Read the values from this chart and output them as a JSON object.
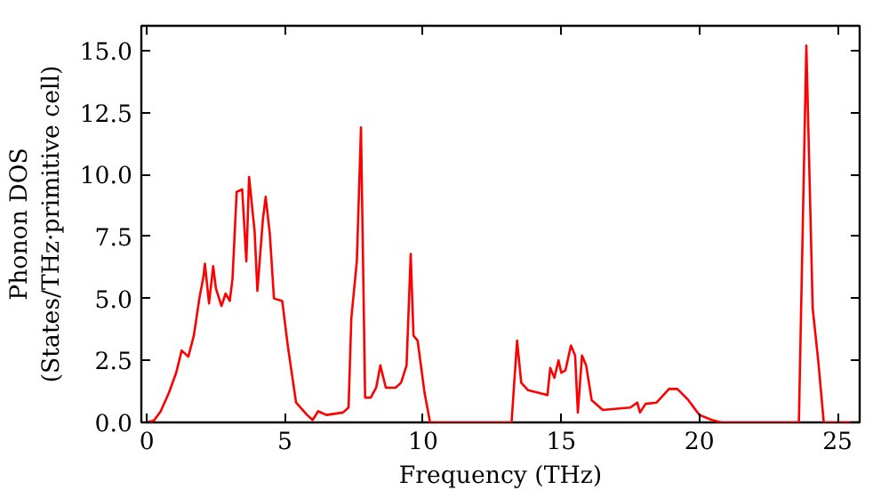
{
  "chart_data": {
    "type": "line",
    "xlabel": "Frequency (THz)",
    "ylabel": "Phonon DOS\n(States/THz·primitive cell)",
    "x": [
      0,
      0.26,
      0.5,
      0.8,
      1.06,
      1.26,
      1.5,
      1.7,
      1.9,
      2.05,
      2.1,
      2.25,
      2.4,
      2.5,
      2.7,
      2.85,
      3.0,
      3.1,
      3.25,
      3.45,
      3.6,
      3.7,
      3.9,
      4.0,
      4.2,
      4.3,
      4.45,
      4.6,
      4.9,
      5.1,
      5.4,
      5.8,
      6.0,
      6.2,
      6.5,
      7.1,
      7.3,
      7.4,
      7.6,
      7.75,
      7.9,
      8.1,
      8.3,
      8.45,
      8.65,
      9.0,
      9.2,
      9.4,
      9.55,
      9.65,
      9.8,
      10.05,
      10.25,
      13.2,
      13.4,
      13.55,
      13.8,
      14.5,
      14.6,
      14.75,
      14.9,
      15.0,
      15.15,
      15.35,
      15.5,
      15.6,
      15.75,
      15.9,
      16.1,
      16.5,
      17.5,
      17.75,
      17.85,
      18.05,
      18.45,
      18.9,
      19.2,
      19.6,
      20.0,
      20.45,
      20.8,
      23.6,
      23.87,
      24.1,
      24.3,
      24.5,
      25.8
    ],
    "series": [
      {
        "color": "#ff0000",
        "values": [
          0,
          0.08,
          0.45,
          1.2,
          2.0,
          2.9,
          2.65,
          3.5,
          5.0,
          5.9,
          6.4,
          4.8,
          6.3,
          5.4,
          4.7,
          5.2,
          4.9,
          5.8,
          9.3,
          9.4,
          6.5,
          9.9,
          7.7,
          5.3,
          8.2,
          9.1,
          7.6,
          5.0,
          4.9,
          3.1,
          0.8,
          0.3,
          0.1,
          0.45,
          0.3,
          0.4,
          0.6,
          4.2,
          6.5,
          11.9,
          1.0,
          1.0,
          1.4,
          2.3,
          1.4,
          1.4,
          1.6,
          2.3,
          6.8,
          3.5,
          3.3,
          1.2,
          0,
          0,
          3.3,
          1.6,
          1.3,
          1.1,
          2.2,
          1.8,
          2.5,
          2.0,
          2.1,
          3.1,
          2.7,
          0.4,
          2.7,
          2.3,
          0.9,
          0.5,
          0.6,
          0.8,
          0.4,
          0.75,
          0.8,
          1.35,
          1.35,
          0.9,
          0.3,
          0.1,
          0,
          0,
          15.2,
          4.6,
          2.5,
          0,
          0
        ]
      }
    ],
    "xlim": [
      -0.2,
      25.8
    ],
    "ylim": [
      0,
      16
    ],
    "xticks": [
      0,
      5,
      10,
      15,
      20,
      25
    ],
    "yticks": [
      {
        "value": 0,
        "label": "0.0"
      },
      {
        "value": 2.5,
        "label": "2.5"
      },
      {
        "value": 5,
        "label": "5.0"
      },
      {
        "value": 7.5,
        "label": "7.5"
      },
      {
        "value": 10,
        "label": "10.0"
      },
      {
        "value": 12.5,
        "label": "12.5"
      },
      {
        "value": 15,
        "label": "15.0"
      }
    ],
    "grid": false
  }
}
